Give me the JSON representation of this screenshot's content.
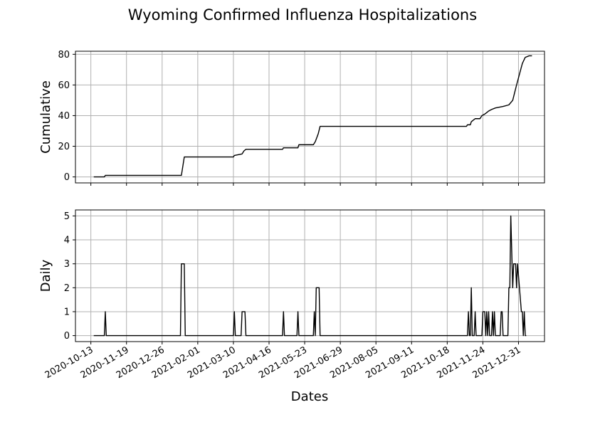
{
  "title": "Wyoming Confirmed Influenza Hospitalizations",
  "colors": {
    "line": "#000000",
    "grid": "#b0b0b0"
  },
  "chart_data": [
    {
      "type": "line",
      "ylabel": "Cumulative",
      "ylim": [
        -3.9,
        82
      ],
      "yticks": [
        0,
        20,
        40,
        60,
        80
      ],
      "grid": true,
      "series": [
        {
          "points": [
            [
              "2020-10-16",
              0
            ],
            [
              "2020-10-27",
              0
            ],
            [
              "2020-10-28",
              1
            ],
            [
              "2021-01-15",
              1
            ],
            [
              "2021-01-18",
              13
            ],
            [
              "2021-03-10",
              13
            ],
            [
              "2021-03-11",
              14
            ],
            [
              "2021-03-19",
              15
            ],
            [
              "2021-03-21",
              17
            ],
            [
              "2021-03-23",
              18
            ],
            [
              "2021-04-30",
              18
            ],
            [
              "2021-05-01",
              19
            ],
            [
              "2021-05-16",
              19
            ],
            [
              "2021-05-17",
              21
            ],
            [
              "2021-06-01",
              21
            ],
            [
              "2021-06-03",
              23
            ],
            [
              "2021-06-06",
              28
            ],
            [
              "2021-06-08",
              33
            ],
            [
              "2021-11-07",
              33
            ],
            [
              "2021-11-08",
              34
            ],
            [
              "2021-11-11",
              34
            ],
            [
              "2021-11-12",
              36
            ],
            [
              "2021-11-14",
              37
            ],
            [
              "2021-11-16",
              38
            ],
            [
              "2021-11-21",
              38
            ],
            [
              "2021-11-23",
              40
            ],
            [
              "2021-11-26",
              41
            ],
            [
              "2021-11-28",
              42
            ],
            [
              "2021-11-30",
              43
            ],
            [
              "2021-12-03",
              44
            ],
            [
              "2021-12-07",
              45
            ],
            [
              "2021-12-15",
              46
            ],
            [
              "2021-12-21",
              47
            ],
            [
              "2021-12-25",
              50
            ],
            [
              "2021-12-27",
              55
            ],
            [
              "2021-12-29",
              60
            ],
            [
              "2022-01-01",
              67
            ],
            [
              "2022-01-04",
              74
            ],
            [
              "2022-01-07",
              78
            ],
            [
              "2022-01-11",
              79
            ],
            [
              "2022-01-14",
              79
            ]
          ]
        }
      ]
    },
    {
      "type": "line",
      "xlabel": "Dates",
      "ylabel": "Daily",
      "ylim": [
        -0.25,
        5.25
      ],
      "yticks": [
        0,
        1,
        2,
        3,
        4,
        5
      ],
      "grid": true,
      "series": [
        {
          "points": [
            [
              "2020-10-16",
              0
            ],
            [
              "2020-10-27",
              0
            ],
            [
              "2020-10-28",
              1
            ],
            [
              "2020-10-29",
              0
            ],
            [
              "2021-01-14",
              0
            ],
            [
              "2021-01-15",
              3
            ],
            [
              "2021-01-18",
              3
            ],
            [
              "2021-01-19",
              0
            ],
            [
              "2021-03-10",
              0
            ],
            [
              "2021-03-11",
              1
            ],
            [
              "2021-03-12",
              0
            ],
            [
              "2021-03-18",
              0
            ],
            [
              "2021-03-19",
              1
            ],
            [
              "2021-03-22",
              1
            ],
            [
              "2021-03-23",
              0
            ],
            [
              "2021-04-30",
              0
            ],
            [
              "2021-05-01",
              1
            ],
            [
              "2021-05-02",
              0
            ],
            [
              "2021-05-15",
              0
            ],
            [
              "2021-05-16",
              1
            ],
            [
              "2021-05-17",
              0
            ],
            [
              "2021-06-01",
              0
            ],
            [
              "2021-06-02",
              1
            ],
            [
              "2021-06-03",
              0
            ],
            [
              "2021-06-04",
              2
            ],
            [
              "2021-06-07",
              2
            ],
            [
              "2021-06-08",
              0
            ],
            [
              "2021-11-08",
              0
            ],
            [
              "2021-11-09",
              1
            ],
            [
              "2021-11-10",
              0
            ],
            [
              "2021-11-11",
              0
            ],
            [
              "2021-11-12",
              2
            ],
            [
              "2021-11-13",
              0
            ],
            [
              "2021-11-15",
              0
            ],
            [
              "2021-11-16",
              1
            ],
            [
              "2021-11-17",
              0
            ],
            [
              "2021-11-23",
              0
            ],
            [
              "2021-11-24",
              1
            ],
            [
              "2021-11-26",
              1
            ],
            [
              "2021-11-27",
              0
            ],
            [
              "2021-11-28",
              1
            ],
            [
              "2021-11-29",
              0
            ],
            [
              "2021-11-30",
              1
            ],
            [
              "2021-12-01",
              0
            ],
            [
              "2021-12-03",
              0
            ],
            [
              "2021-12-04",
              1
            ],
            [
              "2021-12-05",
              0
            ],
            [
              "2021-12-06",
              1
            ],
            [
              "2021-12-07",
              0
            ],
            [
              "2021-12-12",
              0
            ],
            [
              "2021-12-13",
              1
            ],
            [
              "2021-12-14",
              1
            ],
            [
              "2021-12-15",
              0
            ],
            [
              "2021-12-20",
              0
            ],
            [
              "2021-12-21",
              2
            ],
            [
              "2021-12-22",
              2
            ],
            [
              "2021-12-23",
              5
            ],
            [
              "2021-12-25",
              2
            ],
            [
              "2021-12-26",
              3
            ],
            [
              "2021-12-28",
              3
            ],
            [
              "2021-12-29",
              2
            ],
            [
              "2021-12-30",
              3
            ],
            [
              "2022-01-01",
              2
            ],
            [
              "2022-01-03",
              1
            ],
            [
              "2022-01-04",
              1
            ],
            [
              "2022-01-05",
              0
            ],
            [
              "2022-01-06",
              1
            ],
            [
              "2022-01-07",
              0
            ],
            [
              "2022-01-08",
              0
            ]
          ]
        }
      ]
    }
  ],
  "xticks": [
    "2020-10-13",
    "2020-11-19",
    "2020-12-26",
    "2021-02-01",
    "2021-03-10",
    "2021-04-16",
    "2021-05-23",
    "2021-06-29",
    "2021-08-05",
    "2021-09-11",
    "2021-10-18",
    "2021-11-24",
    "2021-12-31"
  ],
  "xlim": [
    "2020-09-27",
    "2022-01-27"
  ]
}
